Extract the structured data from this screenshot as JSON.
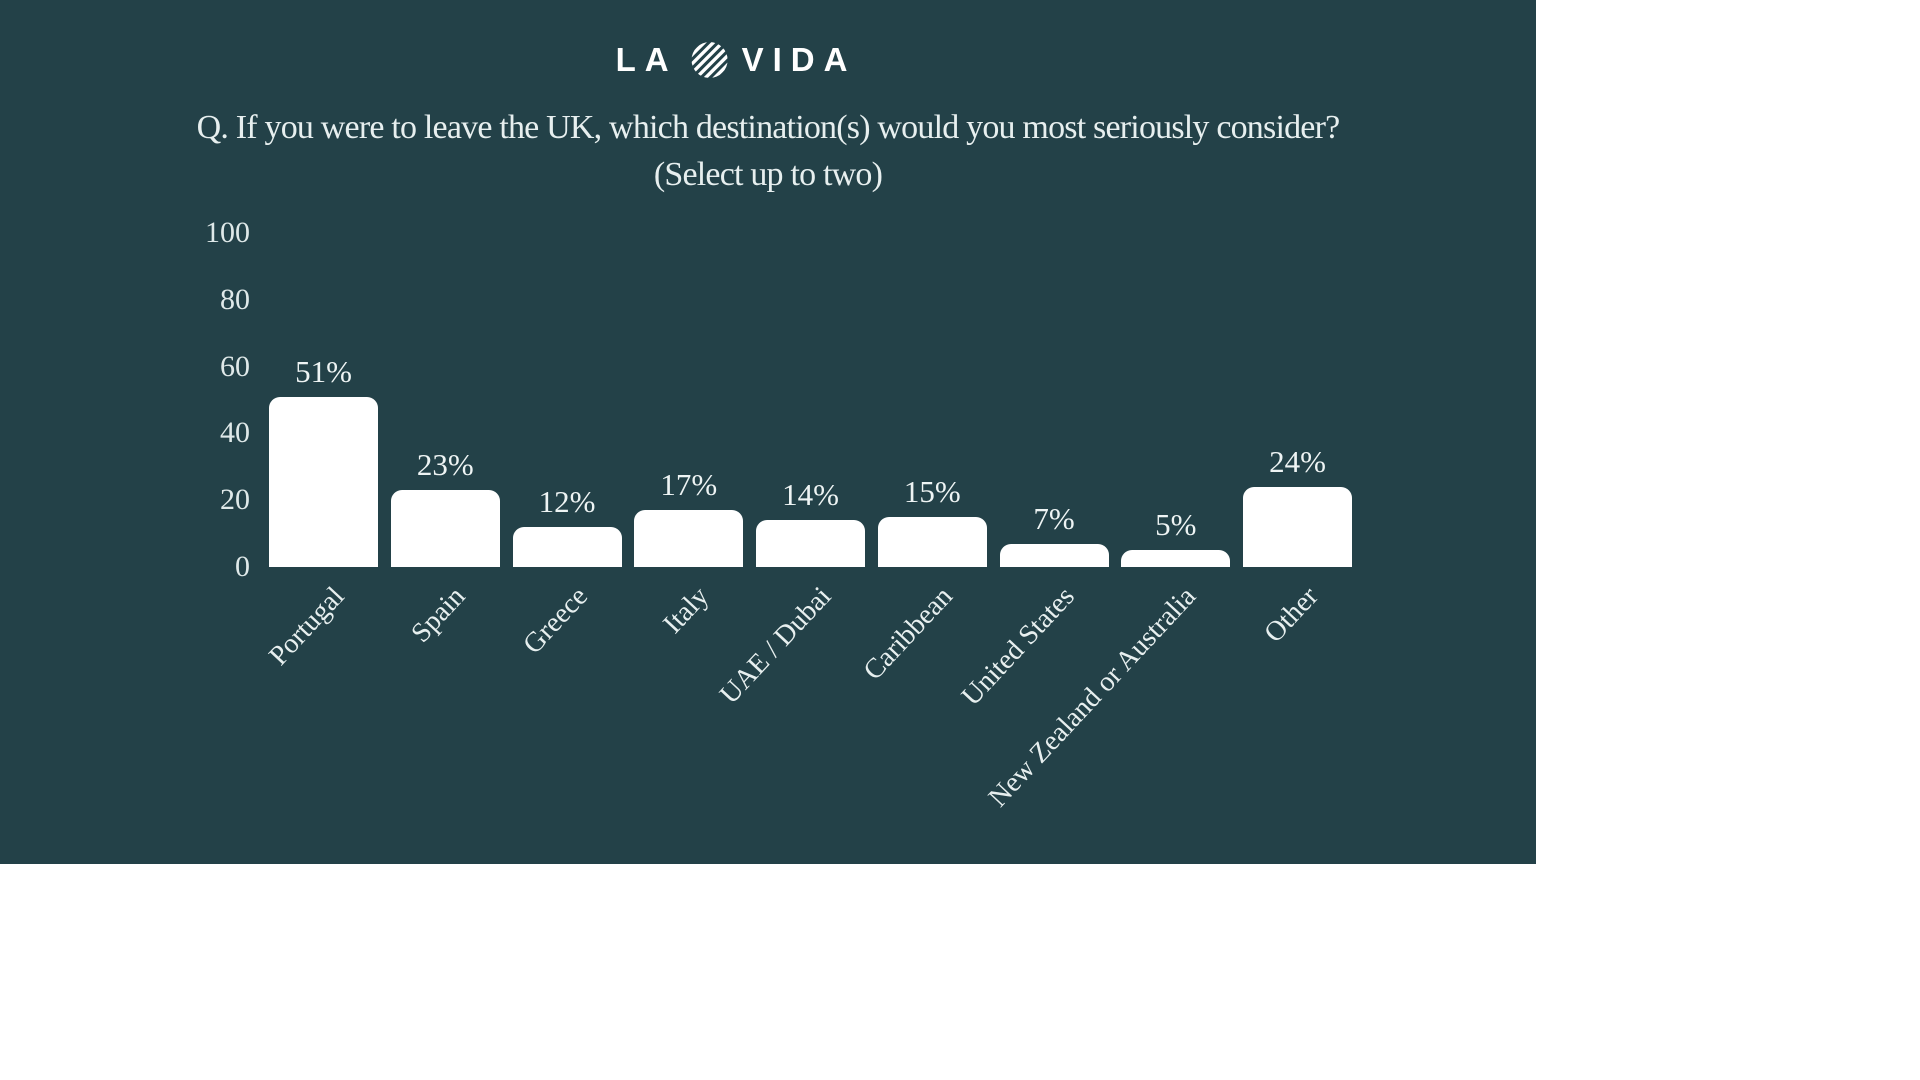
{
  "logo": {
    "text_left": "LA",
    "text_right": "VIDA",
    "icon": "striped-circle-icon"
  },
  "title": {
    "line1": "Q. If you were to leave the UK, which destination(s) would you most seriously consider?",
    "line2": "(Select up to two)"
  },
  "colors": {
    "slide_background": "#234148",
    "bar": "#ffffff",
    "text": "#e7efef",
    "page_background": "#ffffff"
  },
  "chart_data": {
    "type": "bar",
    "title": "Q. If you were to leave the UK, which destination(s) would you most seriously consider? (Select up to two)",
    "categories": [
      "Portugal",
      "Spain",
      "Greece",
      "Italy",
      "UAE / Dubai",
      "Caribbean",
      "United States",
      "New Zealand or Australia",
      "Other"
    ],
    "values": [
      51,
      23,
      12,
      17,
      14,
      15,
      7,
      5,
      24
    ],
    "value_labels": [
      "51%",
      "23%",
      "12%",
      "17%",
      "14%",
      "15%",
      "7%",
      "5%",
      "24%"
    ],
    "xlabel": "",
    "ylabel": "",
    "ylim": [
      0,
      100
    ],
    "y_ticks": [
      0,
      20,
      40,
      60,
      80,
      100
    ],
    "y_tick_labels": [
      "0",
      "20",
      "40",
      "60",
      "80",
      "100"
    ],
    "grid": false,
    "legend": false,
    "bar_color": "#ffffff",
    "xtick_rotation_deg": 47
  }
}
